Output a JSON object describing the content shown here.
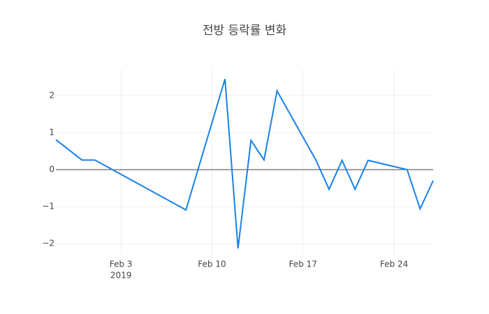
{
  "chart_data": {
    "type": "line",
    "title": "전방 등락률 변화",
    "x": [
      "2019-01-29",
      "2019-01-31",
      "2019-02-01",
      "2019-02-08",
      "2019-02-11",
      "2019-02-12",
      "2019-02-13",
      "2019-02-14",
      "2019-02-15",
      "2019-02-18",
      "2019-02-19",
      "2019-02-20",
      "2019-02-21",
      "2019-02-22",
      "2019-02-25",
      "2019-02-26",
      "2019-02-27"
    ],
    "series": [
      {
        "color": "#1782e8",
        "values": [
          0.81,
          0.26,
          0.26,
          -1.09,
          2.45,
          -2.13,
          0.79,
          0.26,
          2.13,
          0.25,
          -0.53,
          0.25,
          -0.53,
          0.25,
          0.0,
          -1.06,
          -0.3
        ]
      }
    ],
    "xlim": [
      "2019-01-29",
      "2019-02-27"
    ],
    "xticks": [
      {
        "value": "2019-02-03",
        "label": "Feb 3",
        "year": "2019"
      },
      {
        "value": "2019-02-10",
        "label": "Feb 10"
      },
      {
        "value": "2019-02-17",
        "label": "Feb 17"
      },
      {
        "value": "2019-02-24",
        "label": "Feb 24"
      }
    ],
    "ylim": [
      -2.3,
      2.7
    ],
    "yticks": [
      {
        "value": -2,
        "label": "−2"
      },
      {
        "value": -1,
        "label": "−1"
      },
      0,
      1,
      2
    ],
    "grid": true,
    "zeroline": true
  }
}
